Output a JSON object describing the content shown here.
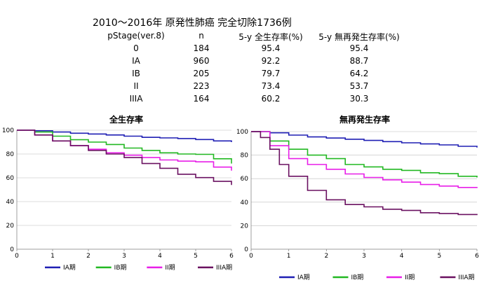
{
  "header": {
    "title": "2010～2016年  原発性肺癌   完全切除1736例"
  },
  "table": {
    "columns": [
      "pStage(ver.8)",
      "n",
      "5-y 全生存率(%)",
      "5-y 無再発生存率(%)"
    ],
    "rows": [
      [
        "0",
        "184",
        "95.4",
        "95.4"
      ],
      [
        "IA",
        "960",
        "92.2",
        "88.7"
      ],
      [
        "IB",
        "205",
        "79.7",
        "64.2"
      ],
      [
        "II",
        "223",
        "73.4",
        "53.7"
      ],
      [
        "IIIA",
        "164",
        "60.2",
        "30.3"
      ]
    ]
  },
  "colors": {
    "IA": "#1f1fb4",
    "IB": "#22b822",
    "II": "#e81ee8",
    "IIIA": "#6a1060"
  },
  "chart_data": [
    {
      "type": "line",
      "title": "全生存率",
      "xlim": [
        0,
        6
      ],
      "ylim": [
        0,
        100
      ],
      "x_ticks": [
        0,
        1,
        2,
        3,
        4,
        5,
        6
      ],
      "y_ticks": [
        0,
        20,
        40,
        60,
        80,
        100
      ],
      "grid": true,
      "legend": "bottom",
      "series": [
        {
          "name": "IA期",
          "color": "#1f1fb4",
          "x": [
            0,
            0.5,
            1,
            1.5,
            2,
            2.5,
            3,
            3.5,
            4,
            4.5,
            5,
            5.5,
            6
          ],
          "y": [
            100,
            99.5,
            98.5,
            97.5,
            96.8,
            96,
            95,
            94,
            93.5,
            93,
            92.2,
            91,
            90
          ]
        },
        {
          "name": "IB期",
          "color": "#22b822",
          "x": [
            0,
            0.5,
            1,
            1.5,
            2,
            2.5,
            3,
            3.5,
            4,
            4.5,
            5,
            5.5,
            6
          ],
          "y": [
            100,
            98.5,
            95,
            92,
            90,
            88,
            85,
            83,
            81,
            80,
            79.7,
            76,
            72
          ]
        },
        {
          "name": "II期",
          "color": "#e81ee8",
          "x": [
            0,
            0.5,
            1,
            1.5,
            2,
            2.5,
            3,
            3.5,
            4,
            4.5,
            5,
            5.5,
            6
          ],
          "y": [
            100,
            96,
            91,
            87,
            84,
            81,
            79,
            77,
            75,
            74,
            73.4,
            69,
            66
          ]
        },
        {
          "name": "IIIA期",
          "color": "#6a1060",
          "x": [
            0,
            0.5,
            1,
            1.5,
            2,
            2.5,
            3,
            3.5,
            4,
            4.5,
            5,
            5.5,
            6
          ],
          "y": [
            100,
            96,
            91,
            87,
            83,
            80,
            77,
            72,
            68,
            63,
            60.2,
            57,
            54
          ]
        }
      ]
    },
    {
      "type": "line",
      "title": "無再発生存率",
      "xlim": [
        0,
        6
      ],
      "ylim": [
        0,
        100
      ],
      "x_ticks": [
        0,
        1,
        2,
        3,
        4,
        5,
        6
      ],
      "y_ticks": [
        0,
        20,
        40,
        60,
        80,
        100
      ],
      "grid": true,
      "legend": "bottom",
      "series": [
        {
          "name": "IA期",
          "color": "#1f1fb4",
          "x": [
            0,
            0.5,
            1,
            1.5,
            2,
            2.5,
            3,
            3.5,
            4,
            4.5,
            5,
            5.5,
            6
          ],
          "y": [
            100,
            99,
            97,
            95.5,
            94.5,
            93.5,
            92.5,
            91.5,
            90.5,
            89.5,
            88.7,
            87.5,
            86.5
          ]
        },
        {
          "name": "IB期",
          "color": "#22b822",
          "x": [
            0,
            0.5,
            1,
            1.5,
            2,
            2.5,
            3,
            3.5,
            4,
            4.5,
            5,
            5.5,
            6
          ],
          "y": [
            100,
            92,
            85,
            80,
            77,
            72,
            70,
            68,
            67,
            65,
            64.2,
            62,
            61
          ]
        },
        {
          "name": "II期",
          "color": "#e81ee8",
          "x": [
            0,
            0.5,
            1,
            1.5,
            2,
            2.5,
            3,
            3.5,
            4,
            4.5,
            5,
            5.5,
            6
          ],
          "y": [
            100,
            88,
            77,
            72,
            68,
            64,
            61,
            59,
            57,
            55,
            53.7,
            52.5,
            52
          ]
        },
        {
          "name": "IIIA期",
          "color": "#6a1060",
          "x": [
            0,
            0.25,
            0.5,
            0.75,
            1,
            1.5,
            2,
            2.5,
            3,
            3.5,
            4,
            4.5,
            5,
            5.5,
            6
          ],
          "y": [
            100,
            95,
            85,
            72,
            62,
            50,
            42,
            38,
            36,
            34,
            33,
            31,
            30.3,
            29.5,
            29
          ]
        }
      ]
    }
  ]
}
